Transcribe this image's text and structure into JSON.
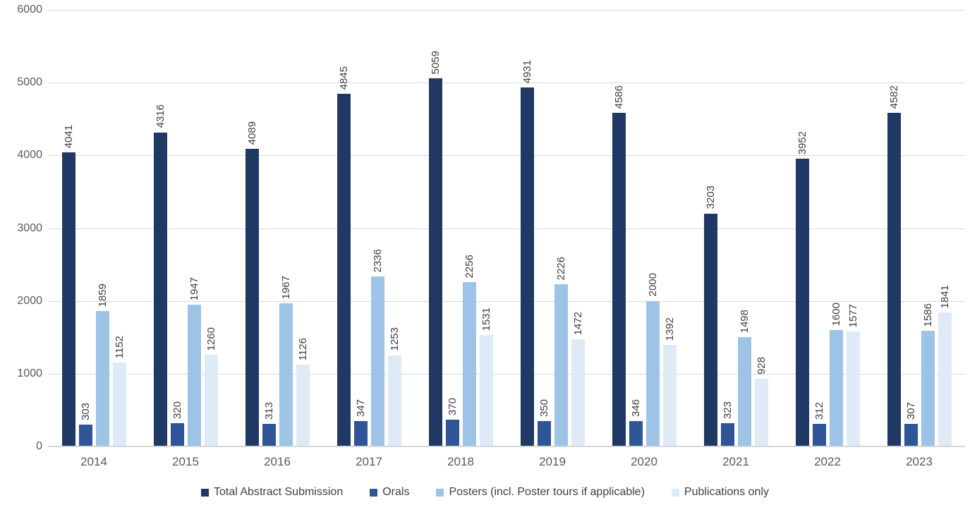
{
  "chart_data": {
    "type": "bar",
    "title": "",
    "xlabel": "",
    "ylabel": "",
    "ylim": [
      0,
      6000
    ],
    "yticks": [
      0,
      1000,
      2000,
      3000,
      4000,
      5000,
      6000
    ],
    "grid": true,
    "legend_position": "bottom",
    "value_label_rotation": 90,
    "categories": [
      "2014",
      "2015",
      "2016",
      "2017",
      "2018",
      "2019",
      "2020",
      "2021",
      "2022",
      "2023"
    ],
    "series": [
      {
        "name": "Total Abstract Submission",
        "color": "#1F3864",
        "values": [
          4041,
          4316,
          4089,
          4845,
          5059,
          4931,
          4586,
          3203,
          3952,
          4582
        ]
      },
      {
        "name": "Orals",
        "color": "#2F5597",
        "values": [
          303,
          320,
          313,
          347,
          370,
          350,
          346,
          323,
          312,
          307
        ]
      },
      {
        "name": "Posters (incl. Poster tours if applicable)",
        "color": "#9DC3E6",
        "values": [
          1859,
          1947,
          1967,
          2336,
          2256,
          2226,
          2000,
          1498,
          1600,
          1586
        ]
      },
      {
        "name": "Publications only",
        "color": "#DEEBF7",
        "values": [
          1152,
          1260,
          1126,
          1253,
          1531,
          1472,
          1392,
          928,
          1577,
          1841
        ]
      }
    ],
    "colors": {
      "gridline": "#D9D9D9",
      "axis_text": "#595959",
      "value_label_text": "#404040",
      "legend_text": "#404040",
      "background": "#FFFFFF"
    }
  }
}
